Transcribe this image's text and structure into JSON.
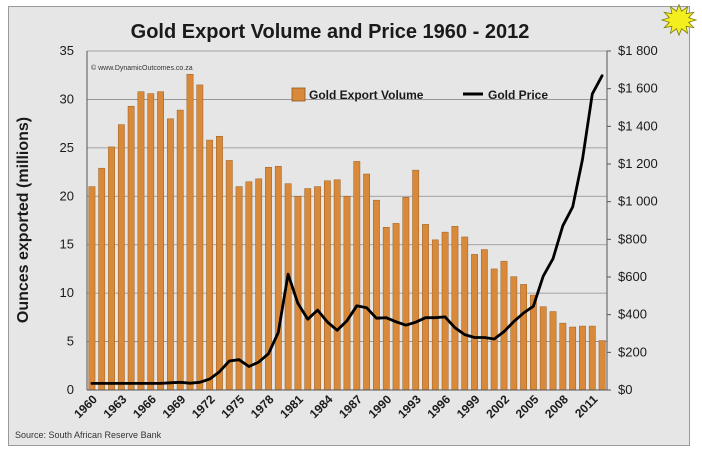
{
  "chart_data": {
    "type": "bar",
    "title": "Gold Export Volume and Price 1960 - 2012",
    "ylabel": "Ounces exported (millions)",
    "ylim": [
      0,
      35
    ],
    "y_ticks": [
      "0",
      "5",
      "10",
      "15",
      "20",
      "25",
      "30",
      "35"
    ],
    "y2lim": [
      0,
      1800
    ],
    "y2_ticks": [
      "$0",
      "$200",
      "$400",
      "$600",
      "$800",
      "$1 000",
      "$1 200",
      "$1 400",
      "$1 600",
      "$1 800"
    ],
    "x_ticks": [
      "1960",
      "1963",
      "1966",
      "1969",
      "1972",
      "1975",
      "1978",
      "1981",
      "1984",
      "1987",
      "1990",
      "1993",
      "1996",
      "1999",
      "2002",
      "2005",
      "2008",
      "2011"
    ],
    "years": [
      1960,
      1961,
      1962,
      1963,
      1964,
      1965,
      1966,
      1967,
      1968,
      1969,
      1970,
      1971,
      1972,
      1973,
      1974,
      1975,
      1976,
      1977,
      1978,
      1979,
      1980,
      1981,
      1982,
      1983,
      1984,
      1985,
      1986,
      1987,
      1988,
      1989,
      1990,
      1991,
      1992,
      1993,
      1994,
      1995,
      1996,
      1997,
      1998,
      1999,
      2000,
      2001,
      2002,
      2003,
      2004,
      2005,
      2006,
      2007,
      2008,
      2009,
      2010,
      2011,
      2012
    ],
    "series": [
      {
        "name": "Gold Export Volume",
        "kind": "bar",
        "axis": "left",
        "color": "#d9893a",
        "values": [
          21.0,
          22.9,
          25.1,
          27.4,
          29.3,
          30.8,
          30.6,
          30.8,
          28.0,
          28.9,
          32.6,
          31.5,
          25.8,
          26.2,
          23.7,
          21.0,
          21.5,
          21.8,
          23.0,
          23.1,
          21.3,
          20.0,
          20.8,
          21.0,
          21.6,
          21.7,
          20.0,
          23.6,
          22.3,
          19.6,
          16.8,
          17.2,
          19.9,
          22.7,
          17.1,
          15.5,
          16.3,
          16.9,
          15.8,
          14.0,
          14.5,
          12.5,
          13.3,
          11.7,
          10.9,
          9.8,
          8.6,
          8.1,
          6.9,
          6.5,
          6.6,
          6.6,
          5.1
        ]
      },
      {
        "name": "Gold Price",
        "kind": "line",
        "axis": "right",
        "color": "#000000",
        "values": [
          35,
          35,
          35,
          35,
          35,
          35,
          35,
          35,
          38,
          41,
          36,
          41,
          58,
          97,
          154,
          161,
          125,
          148,
          193,
          306,
          615,
          460,
          376,
          424,
          361,
          317,
          368,
          447,
          437,
          381,
          384,
          362,
          344,
          360,
          384,
          384,
          388,
          331,
          294,
          279,
          279,
          271,
          310,
          363,
          409,
          445,
          604,
          697,
          872,
          972,
          1225,
          1572,
          1669
        ]
      }
    ],
    "legend": "top-right",
    "grid": true,
    "watermark": "© www.DynamicOutcomes.co.za",
    "source": "Source:  South African Reserve Bank"
  },
  "colors": {
    "background": "#e6e6e6",
    "bar": "#d9893a",
    "line": "#000000",
    "grid": "#8c8c8c",
    "star": "#f4ee1e"
  },
  "icons": {
    "corner": "starburst-icon"
  }
}
